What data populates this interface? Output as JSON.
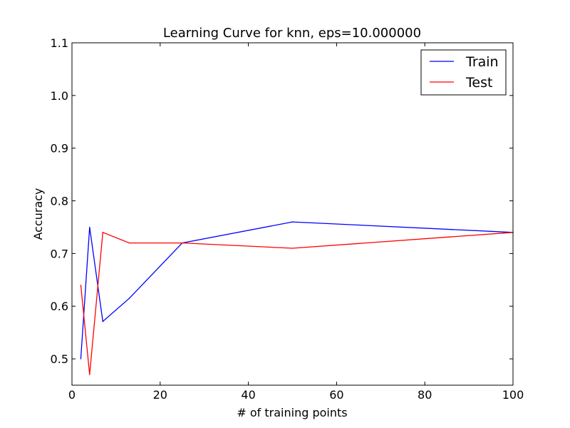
{
  "chart_data": {
    "type": "line",
    "title": "Learning Curve for knn, eps=10.000000",
    "xlabel": "# of training points",
    "ylabel": "Accuracy",
    "xlim": [
      0,
      100
    ],
    "ylim": [
      0.45,
      1.1
    ],
    "xticks": [
      "0",
      "20",
      "40",
      "60",
      "80",
      "100"
    ],
    "yticks": [
      "0.5",
      "0.6",
      "0.7",
      "0.8",
      "0.9",
      "1.0",
      "1.1"
    ],
    "grid": false,
    "legend_position": "top-right",
    "series": [
      {
        "name": "Train",
        "color": "#0000ff",
        "x": [
          2,
          4,
          7,
          13,
          25,
          50,
          100
        ],
        "y": [
          0.5,
          0.75,
          0.571,
          0.615,
          0.72,
          0.76,
          0.74
        ]
      },
      {
        "name": "Test",
        "color": "#ff0000",
        "x": [
          2,
          4,
          7,
          13,
          25,
          50,
          100
        ],
        "y": [
          0.64,
          0.47,
          0.74,
          0.72,
          0.72,
          0.71,
          0.74
        ]
      }
    ]
  }
}
